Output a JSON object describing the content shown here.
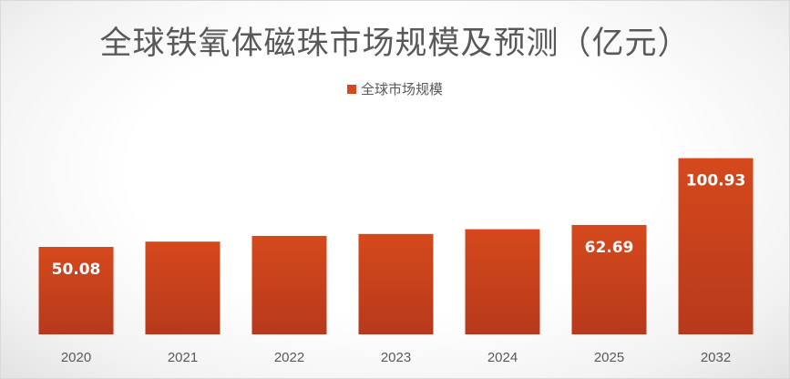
{
  "chart_data": {
    "type": "bar",
    "title": "全球铁氧体磁珠市场规模及预测（亿元）",
    "xlabel": "",
    "ylabel": "",
    "categories": [
      "2020",
      "2021",
      "2022",
      "2023",
      "2024",
      "2025",
      "2032"
    ],
    "series": [
      {
        "name": "全球市场规模",
        "values": [
          50.08,
          53.1,
          56.4,
          57.5,
          60.2,
          62.69,
          100.93
        ],
        "data_labels": [
          "50.08",
          "",
          "",
          "",
          "",
          "62.69",
          "100.93"
        ]
      }
    ],
    "ylim": [
      0,
      105.4
    ],
    "grid": false,
    "legend_position": "top",
    "colors": {
      "bar_top": "#d5491c",
      "bar_bottom": "#b7391b",
      "label_text": "#ffffff",
      "axis_text": "#595959"
    }
  }
}
